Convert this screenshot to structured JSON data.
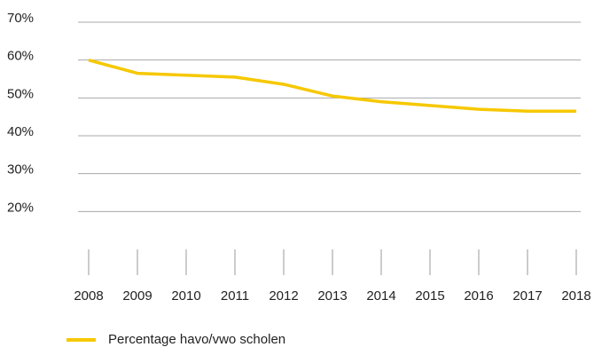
{
  "chart_data": {
    "type": "line",
    "x": [
      2008,
      2009,
      2010,
      2011,
      2012,
      2013,
      2014,
      2015,
      2016,
      2017,
      2018
    ],
    "series": [
      {
        "name": "Percentage havo/vwo scholen",
        "color": "#f6c800",
        "values": [
          60,
          56.5,
          56,
          55.5,
          53.6,
          50.5,
          49,
          48,
          47,
          46.5,
          46.5
        ]
      }
    ],
    "xlim": [
      2008,
      2018
    ],
    "ylim": [
      10,
      70
    ],
    "yticks": [
      {
        "value": 20,
        "label": "20%"
      },
      {
        "value": 30,
        "label": "30%"
      },
      {
        "value": 40,
        "label": "40%"
      },
      {
        "value": 50,
        "label": "50%"
      },
      {
        "value": 60,
        "label": "60%"
      },
      {
        "value": 70,
        "label": "70%"
      }
    ],
    "grid": true,
    "legend": "bottom"
  }
}
